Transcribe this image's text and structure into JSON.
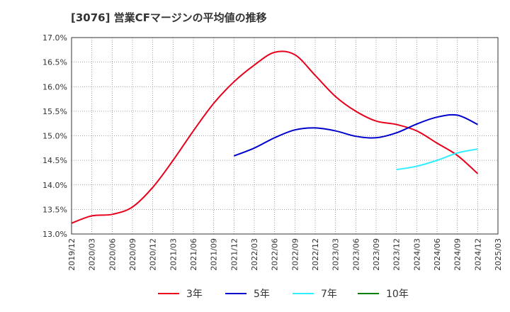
{
  "chart_data": {
    "type": "line",
    "title": "[3076]  営業CFマージンの平均値の推移",
    "xlabel": "",
    "ylabel": "",
    "ylim": [
      13.0,
      17.0
    ],
    "grid": true,
    "legend_placement": "bottom",
    "y_ticks": [
      "13.0%",
      "13.5%",
      "14.0%",
      "14.5%",
      "15.0%",
      "15.5%",
      "16.0%",
      "16.5%",
      "17.0%"
    ],
    "x_ticks": [
      "2019/12",
      "2020/03",
      "2020/06",
      "2020/09",
      "2020/12",
      "2021/03",
      "2021/06",
      "2021/09",
      "2021/12",
      "2022/03",
      "2022/06",
      "2022/09",
      "2022/12",
      "2023/03",
      "2023/06",
      "2023/09",
      "2023/12",
      "2024/03",
      "2024/06",
      "2024/09",
      "2024/12",
      "2025/03"
    ],
    "series": [
      {
        "name": "3年",
        "color": "#e8001c",
        "x": [
          "2019/12",
          "2020/03",
          "2020/06",
          "2020/09",
          "2020/12",
          "2021/03",
          "2021/06",
          "2021/09",
          "2021/12",
          "2022/03",
          "2022/06",
          "2022/09",
          "2022/12",
          "2023/03",
          "2023/06",
          "2023/09",
          "2023/12",
          "2024/03",
          "2024/06",
          "2024/09",
          "2024/12"
        ],
        "values": [
          13.22,
          13.37,
          13.4,
          13.55,
          13.95,
          14.5,
          15.1,
          15.66,
          16.1,
          16.44,
          16.7,
          16.65,
          16.23,
          15.8,
          15.5,
          15.3,
          15.23,
          15.1,
          14.85,
          14.6,
          14.23
        ]
      },
      {
        "name": "5年",
        "color": "#0000cc",
        "x": [
          "2021/12",
          "2022/03",
          "2022/06",
          "2022/09",
          "2022/12",
          "2023/03",
          "2023/06",
          "2023/09",
          "2023/12",
          "2024/03",
          "2024/06",
          "2024/09",
          "2024/12"
        ],
        "values": [
          14.59,
          14.75,
          14.96,
          15.12,
          15.16,
          15.1,
          14.99,
          14.96,
          15.06,
          15.24,
          15.38,
          15.42,
          15.23
        ]
      },
      {
        "name": "7年",
        "color": "#33eeff",
        "x": [
          "2023/12",
          "2024/03",
          "2024/06",
          "2024/09",
          "2024/12"
        ],
        "values": [
          14.31,
          14.38,
          14.5,
          14.65,
          14.73
        ]
      },
      {
        "name": "10年",
        "color": "#008000",
        "x": [],
        "values": []
      }
    ]
  }
}
